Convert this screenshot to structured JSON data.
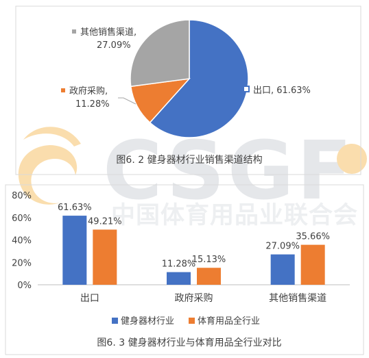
{
  "watermark": {
    "logo_text": "CSGF",
    "org_name": "中国体育用品业联合会"
  },
  "colors": {
    "blue": "#4472C4",
    "orange": "#ED7D31",
    "gray": "#A5A5A5",
    "text": "#404040",
    "axis": "#BFBFBF",
    "frame": "#D9D9D9"
  },
  "chart_data": [
    {
      "type": "pie",
      "title": "图6. 2  健身器材行业销售渠道结构",
      "slices": [
        {
          "label": "出口",
          "value": 61.63,
          "display": "出口, 61.63%",
          "color": "#4472C4"
        },
        {
          "label": "政府采购",
          "value": 11.28,
          "display_name": "政府采购,",
          "display_value": "11.28%",
          "color": "#ED7D31"
        },
        {
          "label": "其他销售渠道",
          "value": 27.09,
          "display_name": "其他销售渠道,",
          "display_value": "27.09%",
          "color": "#A5A5A5"
        }
      ]
    },
    {
      "type": "bar",
      "title": "图6. 3  健身器材行业与体育用品全行业对比",
      "categories": [
        "出口",
        "政府采购",
        "其他销售渠道"
      ],
      "series": [
        {
          "name": "健身器材行业",
          "values": [
            61.63,
            11.28,
            27.09
          ],
          "labels": [
            "61.63%",
            "11.28%",
            "27.09%"
          ],
          "color": "#4472C4"
        },
        {
          "name": "体育用品全行业",
          "values": [
            49.21,
            15.13,
            35.66
          ],
          "labels": [
            "49.21%",
            "15.13%",
            "35.66%"
          ],
          "color": "#ED7D31"
        }
      ],
      "y_ticks": [
        "0%",
        "20%",
        "40%",
        "60%",
        "80%"
      ],
      "ylim": [
        0,
        80
      ],
      "grid": false,
      "legend_position": "bottom"
    }
  ]
}
